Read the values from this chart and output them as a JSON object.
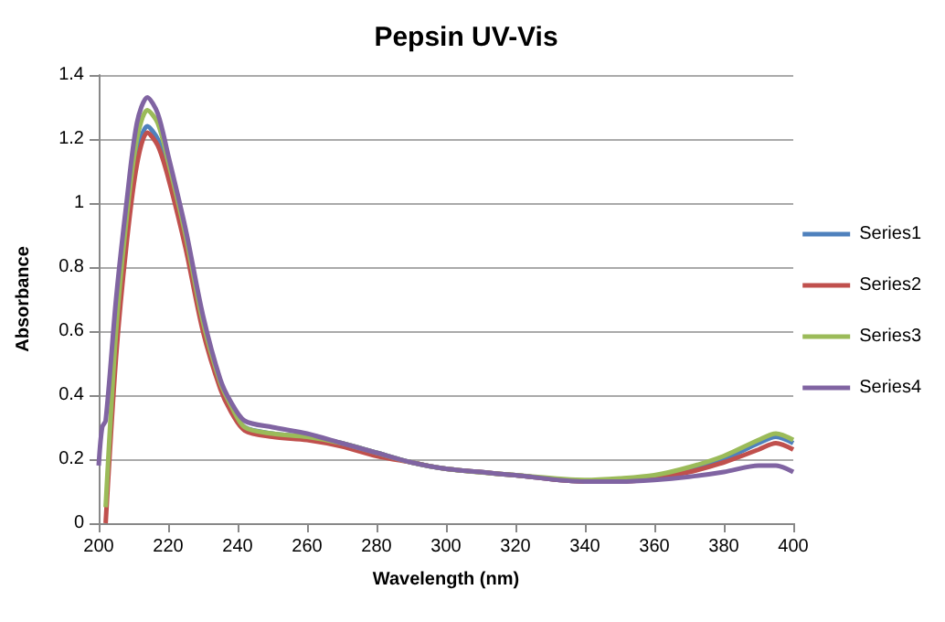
{
  "chart_data": {
    "type": "line",
    "title": "Pepsin UV-Vis",
    "xlabel": "Wavelength (nm)",
    "ylabel": "Absorbance",
    "xlim": [
      200,
      400
    ],
    "xticks": [
      200,
      220,
      240,
      260,
      280,
      300,
      320,
      340,
      360,
      380,
      400
    ],
    "ylim": [
      0,
      1.4
    ],
    "yticks": [
      0,
      0.2,
      0.4,
      0.6,
      0.8,
      1,
      1.2,
      1.4
    ],
    "grid": "y",
    "legend": "right",
    "marker": "none",
    "line_style": "solid",
    "x": [
      202,
      205,
      208,
      211,
      214,
      217,
      220,
      225,
      230,
      235,
      238,
      242,
      250,
      260,
      270,
      280,
      290,
      300,
      320,
      340,
      350,
      360,
      370,
      380,
      390,
      395,
      400
    ],
    "series": [
      {
        "name": "Series1",
        "color": "#4f81bd",
        "values": [
          null,
          0.55,
          0.9,
          1.15,
          1.24,
          1.2,
          1.1,
          0.88,
          0.62,
          0.43,
          0.36,
          0.3,
          0.28,
          0.27,
          0.25,
          0.22,
          0.19,
          0.17,
          0.15,
          0.13,
          0.135,
          0.145,
          0.17,
          0.2,
          0.25,
          0.27,
          0.25
        ]
      },
      {
        "name": "Series2",
        "color": "#c0504d",
        "values": [
          0,
          0.52,
          0.87,
          1.12,
          1.22,
          1.18,
          1.08,
          0.86,
          0.6,
          0.42,
          0.35,
          0.29,
          0.27,
          0.26,
          0.24,
          0.21,
          0.19,
          0.17,
          0.15,
          0.13,
          0.13,
          0.14,
          0.16,
          0.19,
          0.23,
          0.25,
          0.23
        ]
      },
      {
        "name": "Series3",
        "color": "#9bbb59",
        "values": [
          0.05,
          0.6,
          0.95,
          1.2,
          1.29,
          1.25,
          1.13,
          0.9,
          0.63,
          0.44,
          0.37,
          0.3,
          0.28,
          0.27,
          0.25,
          0.22,
          0.19,
          0.17,
          0.15,
          0.135,
          0.14,
          0.15,
          0.175,
          0.21,
          0.26,
          0.28,
          0.26
        ]
      },
      {
        "name": "Series4",
        "color": "#8064a2",
        "x": [
          200,
          201,
          202,
          205,
          208,
          211,
          214,
          217,
          220,
          225,
          230,
          235,
          238,
          242,
          250,
          260,
          270,
          280,
          290,
          300,
          320,
          340,
          350,
          360,
          370,
          380,
          390,
          395,
          400
        ],
        "values": [
          0.18,
          0.3,
          0.32,
          0.7,
          1.0,
          1.25,
          1.33,
          1.28,
          1.15,
          0.92,
          0.65,
          0.45,
          0.38,
          0.32,
          0.3,
          0.28,
          0.25,
          0.22,
          0.19,
          0.17,
          0.15,
          0.13,
          0.13,
          0.135,
          0.145,
          0.16,
          0.18,
          0.18,
          0.16
        ]
      }
    ]
  }
}
